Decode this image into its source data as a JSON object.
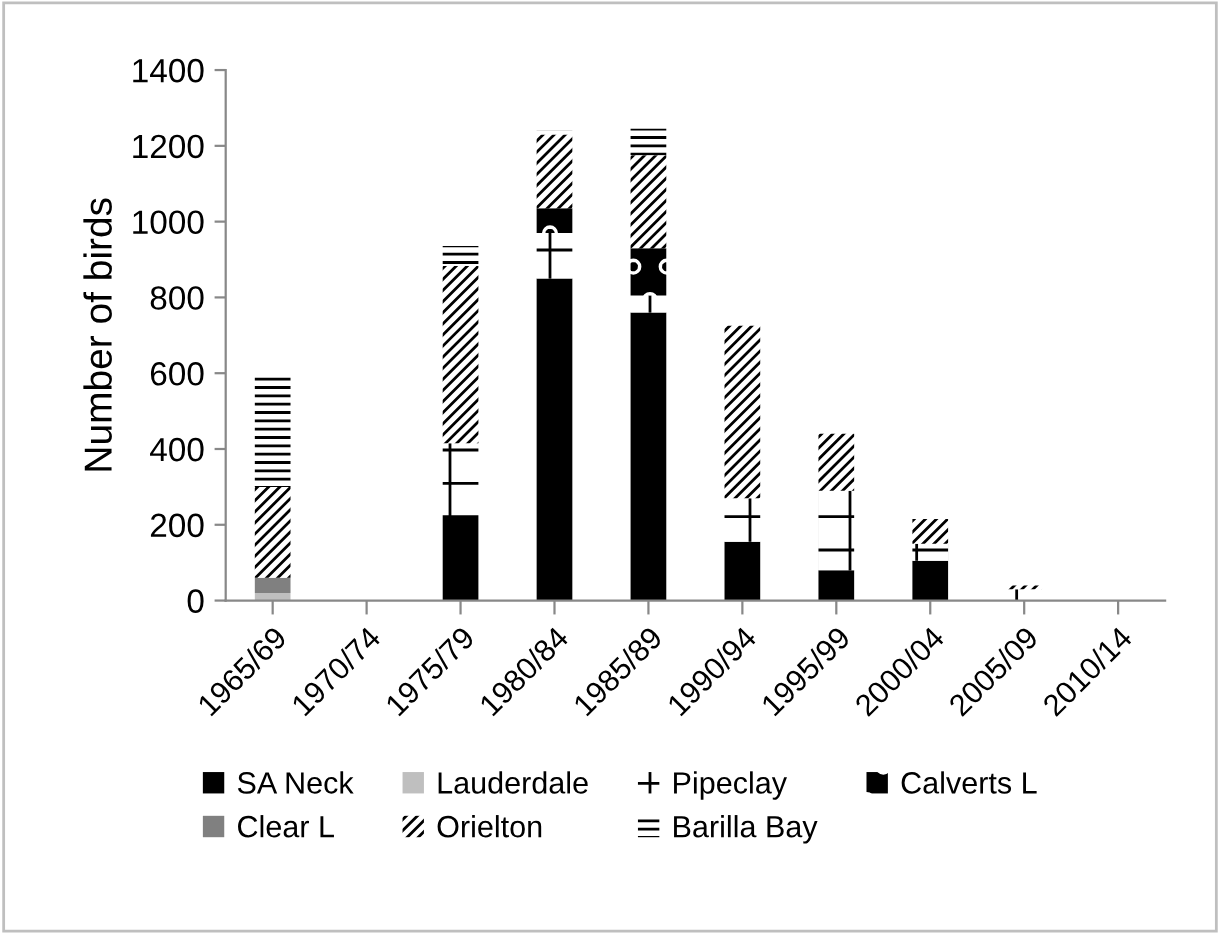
{
  "chart_data": {
    "type": "bar",
    "stacked": true,
    "ylabel": "Number of birds",
    "categories": [
      "1965/69",
      "1970/74",
      "1975/79",
      "1980/84",
      "1985/89",
      "1990/94",
      "1995/99",
      "2000/04",
      "2005/09",
      "2010/14"
    ],
    "ylim": [
      0,
      1400
    ],
    "yticks": [
      0,
      200,
      400,
      600,
      800,
      1000,
      1200,
      1400
    ],
    "grid": false,
    "legend": "bottom",
    "series": [
      {
        "name": "SA Neck",
        "color": "#000000",
        "values": [
          null,
          null,
          218,
          850,
          760,
          155,
          80,
          105,
          null,
          null
        ]
      },
      {
        "name": "Lauderdale",
        "color": "#bfbfbf",
        "values": [
          20,
          null,
          null,
          null,
          null,
          null,
          null,
          null,
          null,
          null
        ]
      },
      {
        "name": "Pipeclay",
        "color": "#000000",
        "values": [
          null,
          null,
          197,
          120,
          45,
          115,
          210,
          45,
          30,
          null
        ]
      },
      {
        "name": "Calverts L",
        "color": "#000000",
        "values": [
          null,
          null,
          null,
          65,
          125,
          null,
          null,
          null,
          null,
          null
        ]
      },
      {
        "name": "Clear L",
        "color": "#808080",
        "values": [
          40,
          null,
          null,
          null,
          null,
          null,
          null,
          null,
          null,
          null
        ]
      },
      {
        "name": "Orielton",
        "color": "#000000",
        "values": [
          240,
          null,
          468,
          195,
          245,
          455,
          150,
          65,
          10,
          null
        ]
      },
      {
        "name": "Barilla Bay",
        "color": "#000000",
        "values": [
          300,
          null,
          53,
          10,
          70,
          null,
          null,
          null,
          null,
          null
        ]
      }
    ]
  }
}
